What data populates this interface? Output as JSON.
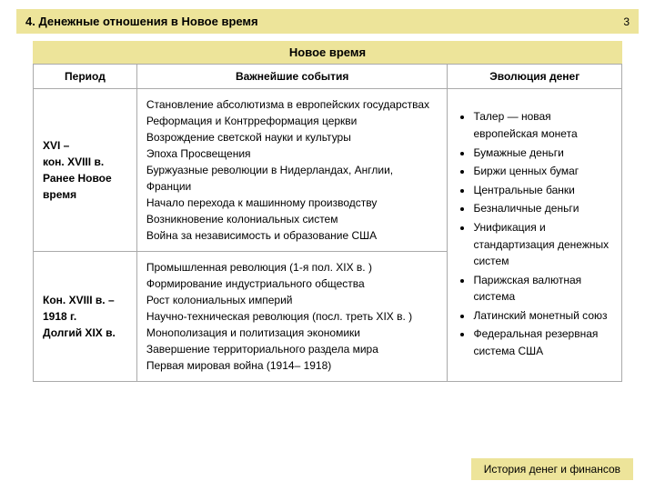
{
  "header": {
    "title": "4. Денежные отношения в Новое время",
    "page_number": "3"
  },
  "section_title": "Новое время",
  "columns": {
    "period": "Период",
    "events": "Важнейшие события",
    "evolution": "Эволюция денег"
  },
  "rows": [
    {
      "period_lines": [
        "XVI –",
        "кон. XVIII в.",
        "",
        "Ранее Новое время"
      ],
      "events": [
        "Становление абсолютизма в европейских государствах",
        "Реформация и Контрреформация церкви",
        "Возрождение светской науки и культуры",
        "Эпоха Просвещения",
        "Буржуазные революции в Нидерландах, Англии, Франции",
        "Начало перехода к машинному производству",
        "Возникновение колониальных систем",
        "Война за независимость и образование США"
      ]
    },
    {
      "period_lines": [
        "Кон. XVIII в. – 1918 г.",
        "",
        "Долгий XIX в."
      ],
      "events": [
        "Промышленная революция (1-я пол. XIX в. )",
        "Формирование индустриального общества",
        "Рост колониальных империй",
        "Научно-техническая революция (посл. треть XIX в. )",
        "Монополизация и политизация экономики",
        "Завершение территориального раздела мира",
        "Первая мировая война (1914– 1918)"
      ]
    }
  ],
  "evolution_bullets": [
    "Талер — новая европейская монета",
    "Бумажные деньги",
    "Биржи ценных бумаг",
    "Центральные банки",
    "Безналичные деньги",
    "Унификация и стандартизация денежных систем",
    "Парижская валютная система",
    "Латинский монетный союз",
    "Федеральная резервная система США"
  ],
  "footer": "История денег и финансов",
  "colors": {
    "highlight": "#ede49a",
    "border": "#aaaaaa",
    "background": "#ffffff"
  }
}
